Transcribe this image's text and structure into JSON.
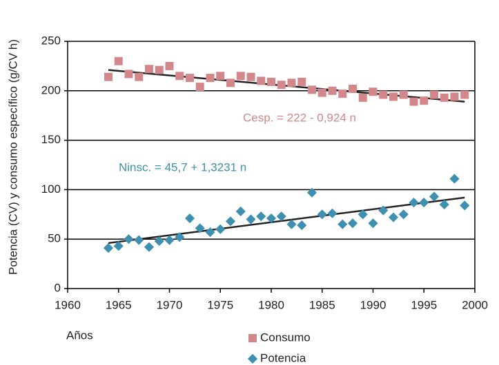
{
  "chart_data": {
    "type": "scatter",
    "ylabel": "Potencia (CV) y consumo específico (g/CV h)",
    "xlabel": "Años",
    "x": [
      1964,
      1965,
      1966,
      1967,
      1968,
      1969,
      1970,
      1971,
      1972,
      1973,
      1974,
      1975,
      1976,
      1977,
      1978,
      1979,
      1980,
      1981,
      1982,
      1983,
      1984,
      1985,
      1986,
      1987,
      1988,
      1989,
      1990,
      1991,
      1992,
      1993,
      1994,
      1995,
      1996,
      1997,
      1998,
      1999
    ],
    "series": [
      {
        "name": "Consumo",
        "color": "#d4878a",
        "marker": "square",
        "values": [
          214,
          230,
          217,
          214,
          222,
          221,
          225,
          215,
          213,
          204,
          213,
          215,
          208,
          215,
          214,
          210,
          209,
          206,
          208,
          209,
          201,
          198,
          200,
          197,
          202,
          193,
          199,
          196,
          194,
          196,
          189,
          190,
          196,
          193,
          194,
          196
        ]
      },
      {
        "name": "Potencia",
        "color": "#3e8fb0",
        "marker": "diamond",
        "values": [
          41,
          43,
          50,
          49,
          42,
          48,
          49,
          52,
          71,
          61,
          57,
          60,
          68,
          78,
          70,
          73,
          71,
          73,
          65,
          64,
          97,
          75,
          76,
          65,
          66,
          75,
          66,
          79,
          72,
          75,
          87,
          87,
          93,
          85,
          111,
          84
        ]
      }
    ],
    "trendlines": [
      {
        "x": [
          1964,
          1999
        ],
        "values": [
          221,
          189
        ],
        "color": "#222222"
      },
      {
        "x": [
          1964,
          1999
        ],
        "values": [
          46,
          92
        ],
        "color": "#222222"
      }
    ],
    "annotations": [
      "Cesp. = 222 - 0,924 n",
      "Ninsc. = 45,7 + 1,3231 n"
    ],
    "xlim": [
      1960,
      2000
    ],
    "xticks": [
      1960,
      1965,
      1970,
      1975,
      1980,
      1985,
      1990,
      1995,
      2000
    ],
    "ylim": [
      0,
      250
    ],
    "yticks": [
      0,
      50,
      100,
      150,
      200,
      250
    ],
    "grid": true
  }
}
